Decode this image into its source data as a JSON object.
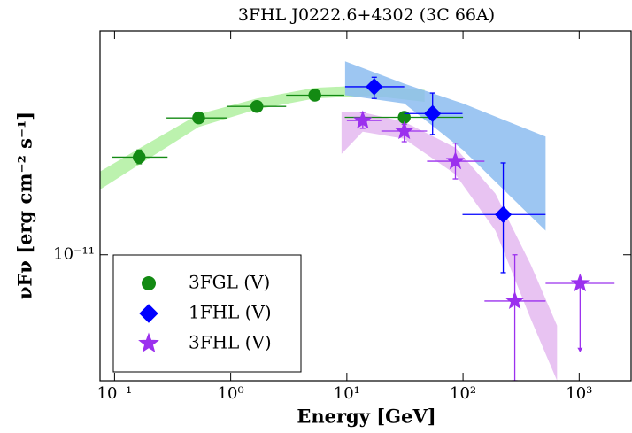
{
  "chart_data": {
    "type": "sed-loglog",
    "title": "3FHL J0222.6+4302 (3C 66A)",
    "x_label": "Energy [GeV]",
    "y_label": "νFν [erg cm⁻² s⁻¹]",
    "x_log": true,
    "y_log": true,
    "xlim": [
      0.075,
      2800
    ],
    "ylim": [
      4.4e-12,
      4.3e-11
    ],
    "xticks": [
      {
        "value": 0.1,
        "label": "10⁻¹"
      },
      {
        "value": 1,
        "label": "10⁰"
      },
      {
        "value": 10,
        "label": "10¹"
      },
      {
        "value": 100,
        "label": "10²"
      },
      {
        "value": 1000,
        "label": "10³"
      }
    ],
    "yticks": [
      {
        "value": 1e-11,
        "label": "10⁻¹¹"
      }
    ],
    "legend": "lower left",
    "series": [
      {
        "name": "3FGL (V)",
        "color": "#138a13",
        "marker": "circle",
        "x": [
          0.163,
          0.53,
          1.68,
          5.3,
          31.2
        ],
        "values": [
          1.89e-11,
          2.44e-11,
          2.63e-11,
          2.83e-11,
          2.45e-11
        ],
        "x_low": [
          0.095,
          0.28,
          0.925,
          3.0,
          9.6
        ],
        "x_high": [
          0.286,
          0.925,
          3.0,
          9.5,
          100
        ],
        "y_low": [
          1.81e-11,
          2.38e-11,
          2.58e-11,
          2.77e-11,
          2.37e-11
        ],
        "y_high": [
          1.98e-11,
          2.5e-11,
          2.68e-11,
          2.89e-11,
          2.53e-11
        ],
        "band": {
          "color": "#b0f0a0",
          "x": [
            0.075,
            0.163,
            0.53,
            1.68,
            5.3,
            16.3,
            46.7
          ],
          "low": [
            1.53e-11,
            1.8e-11,
            2.3e-11,
            2.58e-11,
            2.77e-11,
            2.82e-11,
            2.71e-11
          ],
          "high": [
            1.72e-11,
            2e-11,
            2.5e-11,
            2.77e-11,
            2.97e-11,
            3.02e-11,
            2.93e-11
          ]
        }
      },
      {
        "name": "1FHL (V)",
        "color": "#0000ff",
        "marker": "diamond",
        "x": [
          17.2,
          54.7,
          222
        ],
        "values": [
          2.99e-11,
          2.51e-11,
          1.3e-11
        ],
        "x_low": [
          9.66,
          31.2,
          99
        ],
        "x_high": [
          31.2,
          99,
          514
        ],
        "y_low": [
          2.77e-11,
          2.19e-11,
          8.9e-12
        ],
        "y_high": [
          3.18e-11,
          2.87e-11,
          1.82e-11
        ],
        "band": {
          "color": "#8cbcf0",
          "x": [
            9.66,
            31.2,
            100,
            514
          ],
          "low": [
            2.83e-11,
            2.68e-11,
            1.98e-11,
            1.17e-11
          ],
          "high": [
            3.53e-11,
            3.05e-11,
            2.68e-11,
            2.16e-11
          ]
        }
      },
      {
        "name": "3FHL (V)",
        "color": "#9b30ee",
        "marker": "star",
        "x": [
          13.7,
          31.2,
          86,
          279,
          1018
        ],
        "values": [
          2.4e-11,
          2.24e-11,
          1.84e-11,
          7.4e-12,
          8.3e-12
        ],
        "x_low": [
          10,
          19.8,
          49,
          153,
          514
        ],
        "x_high": [
          19.8,
          49,
          153,
          514,
          2014
        ],
        "y_low": [
          2.28e-11,
          2.09e-11,
          1.64e-11,
          4.4e-12,
          5.3e-12
        ],
        "y_high": [
          2.53e-11,
          2.34e-11,
          2.07e-11,
          1e-11,
          8.3e-12
        ],
        "upper_limits": [
          false,
          false,
          false,
          false,
          true
        ],
        "band": {
          "color": "#e4b8f0",
          "x": [
            9.0,
            13.7,
            31.2,
            86,
            190,
            382,
            645
          ],
          "low": [
            1.93e-11,
            2.23e-11,
            2.13e-11,
            1.69e-11,
            1.17e-11,
            6.6e-12,
            4.4e-12
          ],
          "high": [
            2.53e-11,
            2.53e-11,
            2.38e-11,
            2.01e-11,
            1.49e-11,
            9.4e-12,
            6.3e-12
          ]
        }
      }
    ]
  }
}
